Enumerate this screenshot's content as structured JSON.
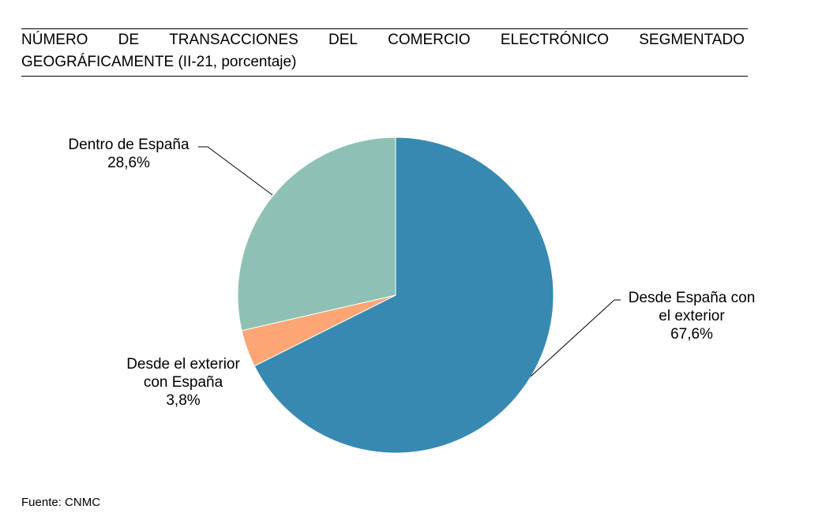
{
  "header": {
    "title_words": [
      "NÚMERO",
      "DE",
      "TRANSACCIONES",
      "DEL",
      "COMERCIO",
      "ELECTRÓNICO",
      "SEGMENTADO"
    ],
    "title_line2": "GEOGRÁFICAMENTE (II-21, porcentaje)"
  },
  "chart_data": {
    "type": "pie",
    "title": "NÚMERO DE TRANSACCIONES DEL COMERCIO ELECTRÓNICO SEGMENTADO GEOGRÁFICAMENTE (II-21, porcentaje)",
    "start": "12 o'clock",
    "direction": "clockwise",
    "legend": "none",
    "slices": [
      {
        "label": "Desde España con el exterior",
        "label_lines": [
          "Desde España con",
          "el exterior"
        ],
        "value": 67.6,
        "value_label": "67,6%",
        "color": "#3789B1"
      },
      {
        "label": "Desde el exterior con España",
        "label_lines": [
          "Desde el exterior",
          "con España"
        ],
        "value": 3.8,
        "value_label": "3,8%",
        "color": "#FCA575"
      },
      {
        "label": "Dentro de España",
        "label_lines": [
          "Dentro de España"
        ],
        "value": 28.6,
        "value_label": "28,6%",
        "color": "#8EC1B4"
      }
    ]
  },
  "footer": {
    "source": "Fuente: CNMC"
  }
}
